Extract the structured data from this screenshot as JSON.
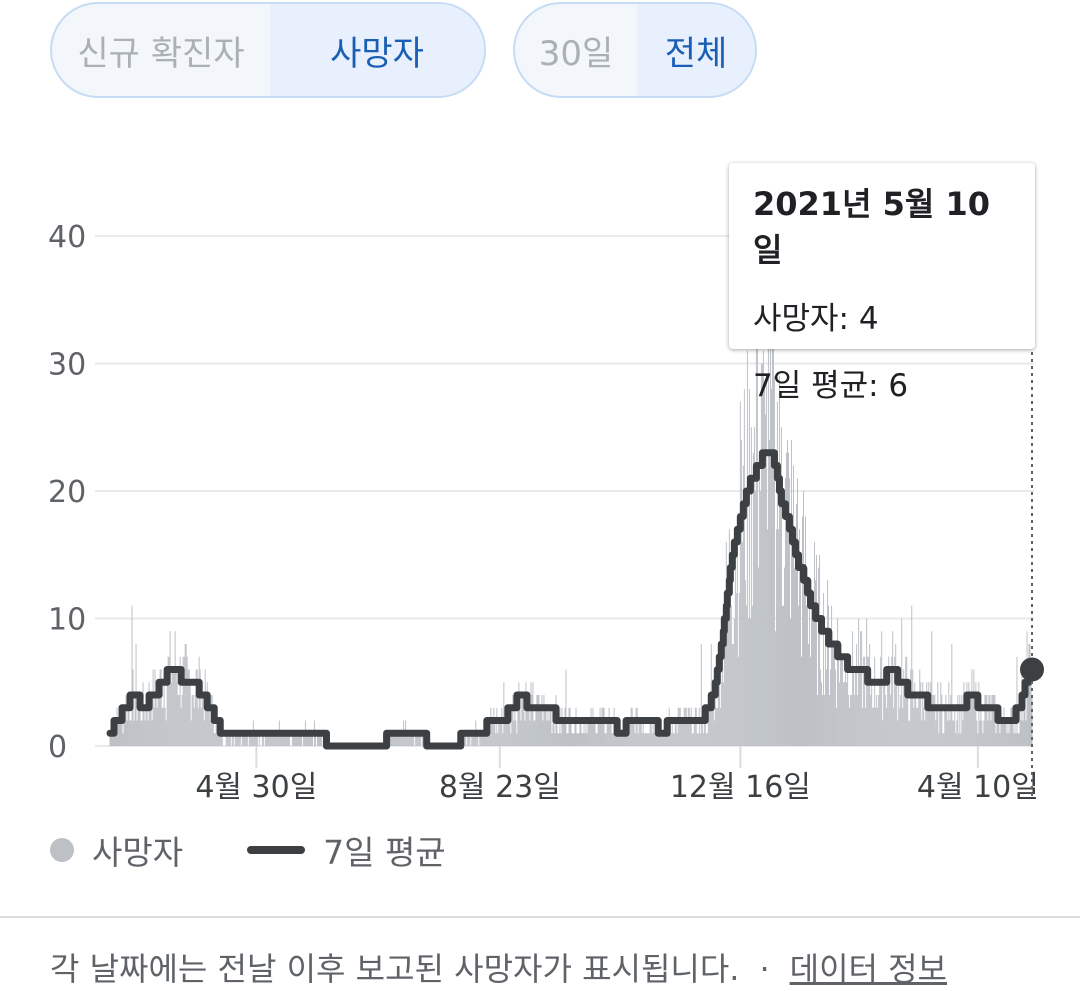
{
  "metric_toggle": {
    "options": [
      "신규 확진자",
      "사망자"
    ],
    "selected": "사망자"
  },
  "range_toggle": {
    "options": [
      "30일",
      "전체"
    ],
    "selected": "전체"
  },
  "tooltip": {
    "date": "2021년 5월 10일",
    "deaths": "사망자: 4",
    "avg": "7일 평균: 6"
  },
  "legend": {
    "deaths": "사망자",
    "avg": "7일 평균"
  },
  "footer": {
    "note": "각 날짜에는 전날 이후 보고된 사망자가 표시됩니다.",
    "dot": "·",
    "link": "데이터 정보"
  },
  "colors": {
    "bars": "#bdc1c6",
    "line": "#3c4043",
    "grid": "#e8eaed",
    "accent": "#1a5fb4"
  },
  "chart_data": {
    "type": "bar",
    "series": [
      {
        "name": "사망자",
        "type": "bar"
      },
      {
        "name": "7일 평균",
        "type": "line"
      }
    ],
    "x_ticks": [
      "4월 30일",
      "8월 23일",
      "12월 16일",
      "4월 10일"
    ],
    "ylim": [
      0,
      40
    ],
    "yticks": [
      0,
      10,
      20,
      30,
      40
    ],
    "grid": true,
    "legend_position": "bottom-left",
    "avg_profile": [
      [
        0,
        1
      ],
      [
        8,
        2
      ],
      [
        16,
        3
      ],
      [
        24,
        4
      ],
      [
        34,
        3
      ],
      [
        44,
        4
      ],
      [
        54,
        5
      ],
      [
        60,
        6
      ],
      [
        66,
        6
      ],
      [
        74,
        5
      ],
      [
        84,
        5
      ],
      [
        92,
        4
      ],
      [
        100,
        3
      ],
      [
        106,
        2
      ],
      [
        112,
        1
      ],
      [
        140,
        1
      ],
      [
        155,
        1
      ],
      [
        170,
        1
      ],
      [
        180,
        0.5
      ],
      [
        192,
        1
      ],
      [
        205,
        1
      ],
      [
        215,
        0.5
      ],
      [
        220,
        0
      ],
      [
        245,
        0
      ],
      [
        270,
        0
      ],
      [
        282,
        1
      ],
      [
        300,
        1
      ],
      [
        315,
        0.5
      ],
      [
        320,
        0
      ],
      [
        345,
        0
      ],
      [
        355,
        1
      ],
      [
        370,
        1
      ],
      [
        382,
        2
      ],
      [
        392,
        2
      ],
      [
        402,
        3
      ],
      [
        410,
        4
      ],
      [
        420,
        3
      ],
      [
        432,
        3
      ],
      [
        440,
        3
      ],
      [
        448,
        2
      ],
      [
        460,
        2
      ],
      [
        480,
        2
      ],
      [
        500,
        2
      ],
      [
        510,
        1
      ],
      [
        520,
        2
      ],
      [
        540,
        2
      ],
      [
        552,
        1
      ],
      [
        560,
        2
      ],
      [
        575,
        2
      ],
      [
        590,
        2
      ],
      [
        598,
        3
      ],
      [
        605,
        5
      ],
      [
        612,
        9
      ],
      [
        618,
        13
      ],
      [
        624,
        16
      ],
      [
        630,
        18
      ],
      [
        636,
        20
      ],
      [
        642,
        21
      ],
      [
        648,
        22
      ],
      [
        654,
        23
      ],
      [
        660,
        23
      ],
      [
        664,
        22
      ],
      [
        670,
        19
      ],
      [
        676,
        18
      ],
      [
        682,
        16
      ],
      [
        688,
        14
      ],
      [
        694,
        13
      ],
      [
        700,
        11
      ],
      [
        706,
        10
      ],
      [
        712,
        9
      ],
      [
        720,
        8
      ],
      [
        730,
        7
      ],
      [
        740,
        6
      ],
      [
        750,
        6
      ],
      [
        760,
        5
      ],
      [
        770,
        5
      ],
      [
        780,
        6
      ],
      [
        790,
        5
      ],
      [
        800,
        4
      ],
      [
        810,
        4
      ],
      [
        820,
        3
      ],
      [
        835,
        3
      ],
      [
        850,
        3
      ],
      [
        860,
        4
      ],
      [
        870,
        3
      ],
      [
        880,
        3
      ],
      [
        890,
        2
      ],
      [
        900,
        2
      ],
      [
        908,
        3
      ],
      [
        914,
        5
      ],
      [
        920,
        6
      ]
    ],
    "bar_spikes": [
      [
        22,
        11
      ],
      [
        26,
        8
      ],
      [
        60,
        9
      ],
      [
        65,
        9
      ],
      [
        74,
        7
      ],
      [
        90,
        6
      ],
      [
        393,
        5
      ],
      [
        420,
        5
      ],
      [
        455,
        6
      ],
      [
        590,
        8
      ],
      [
        600,
        8
      ],
      [
        630,
        24
      ],
      [
        640,
        25
      ],
      [
        646,
        34
      ],
      [
        650,
        30
      ],
      [
        654,
        26
      ],
      [
        658,
        24
      ],
      [
        662,
        33
      ],
      [
        666,
        27
      ],
      [
        670,
        25
      ],
      [
        676,
        24
      ],
      [
        685,
        19
      ],
      [
        700,
        13
      ],
      [
        720,
        11
      ],
      [
        755,
        10
      ],
      [
        770,
        9
      ],
      [
        790,
        10
      ],
      [
        800,
        11
      ],
      [
        820,
        9
      ],
      [
        840,
        8
      ],
      [
        860,
        6
      ],
      [
        905,
        7
      ],
      [
        915,
        9
      ]
    ],
    "point_count": 921
  }
}
